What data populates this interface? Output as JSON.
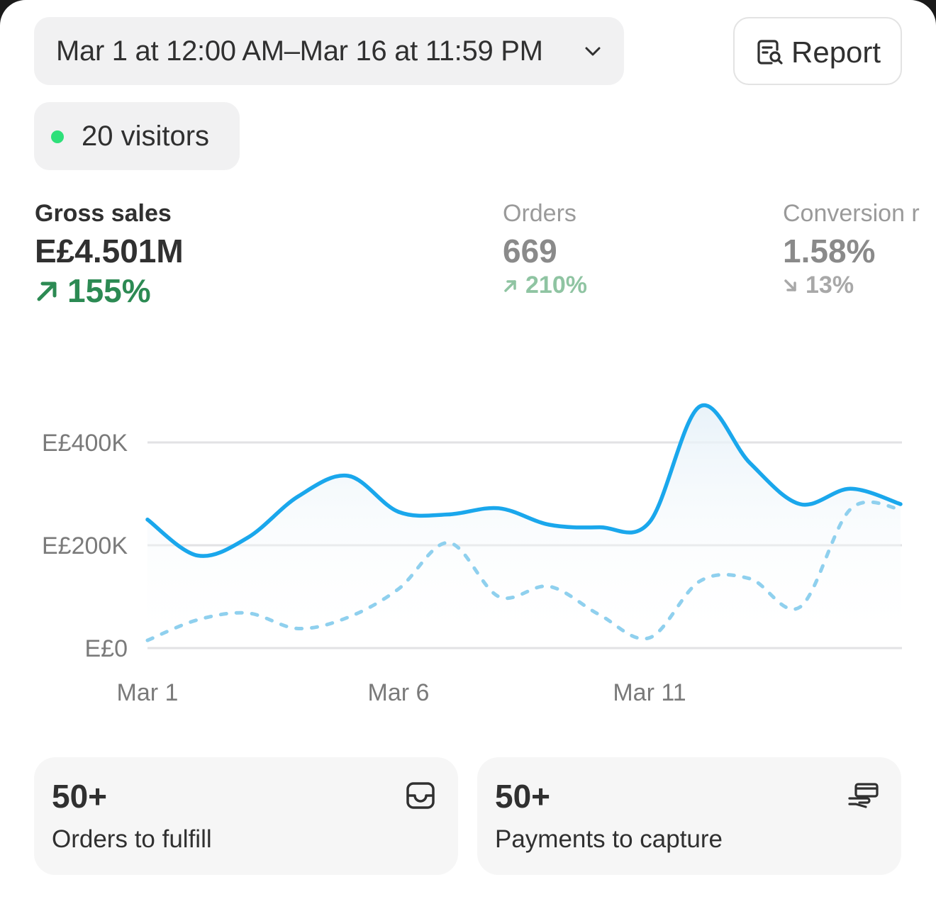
{
  "header": {
    "date_range": "Mar 1 at 12:00 AM–Mar 16 at 11:59 PM",
    "report_label": "Report"
  },
  "visitors": {
    "label": "20 visitors",
    "dot_color": "#2ee07a"
  },
  "metrics": [
    {
      "label": "Gross sales",
      "value": "E£4.501M",
      "change": "155%",
      "direction": "up",
      "active": true
    },
    {
      "label": "Orders",
      "value": "669",
      "change": "210%",
      "direction": "up",
      "active": false
    },
    {
      "label": "Conversion r",
      "value": "1.58%",
      "change": "13%",
      "direction": "down",
      "active": false
    }
  ],
  "chart_data": {
    "type": "line",
    "x": [
      "Mar 1",
      "Mar 2",
      "Mar 3",
      "Mar 4",
      "Mar 5",
      "Mar 6",
      "Mar 7",
      "Mar 8",
      "Mar 9",
      "Mar 10",
      "Mar 11",
      "Mar 12",
      "Mar 13",
      "Mar 14",
      "Mar 15",
      "Mar 16"
    ],
    "x_tick_labels": [
      "Mar 1",
      "Mar 6",
      "Mar 11"
    ],
    "y_tick_labels": [
      "E£0",
      "E£200K",
      "E£400K"
    ],
    "ylim": [
      0,
      400000
    ],
    "grid": true,
    "series": [
      {
        "style": "solid",
        "color": "#1aa7ec",
        "values": [
          250000,
          180000,
          215000,
          295000,
          335000,
          265000,
          260000,
          272000,
          240000,
          235000,
          245000,
          470000,
          360000,
          280000,
          310000,
          280000
        ]
      },
      {
        "style": "dashed",
        "color": "#8fd0ee",
        "values": [
          15000,
          55000,
          68000,
          38000,
          60000,
          115000,
          205000,
          100000,
          120000,
          65000,
          20000,
          130000,
          135000,
          80000,
          270000,
          270000
        ]
      }
    ]
  },
  "tiles": [
    {
      "count": "50+",
      "label": "Orders to fulfill",
      "icon": "inbox-icon"
    },
    {
      "count": "50+",
      "label": "Payments to capture",
      "icon": "payment-hand-icon"
    }
  ]
}
